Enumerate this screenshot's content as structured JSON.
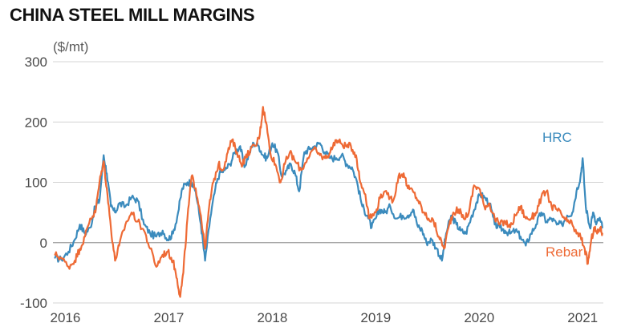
{
  "chart_data": {
    "type": "line",
    "title": "CHINA STEEL MILL MARGINS",
    "ylabel": "($/mt)",
    "xlabel": "",
    "ylim": [
      -100,
      300
    ],
    "xlim": [
      2015.88,
      2021.2
    ],
    "yticks": [
      -100,
      0,
      100,
      200,
      300
    ],
    "xticks": [
      2016,
      2017,
      2018,
      2019,
      2020,
      2021
    ],
    "grid": "horizontal",
    "legend": "inline labels at series ends",
    "series": [
      {
        "name": "HRC",
        "color": "#3b8bbd",
        "points": [
          [
            2015.9,
            -25
          ],
          [
            2015.96,
            -28
          ],
          [
            2016.03,
            -15
          ],
          [
            2016.09,
            5
          ],
          [
            2016.14,
            30
          ],
          [
            2016.19,
            15
          ],
          [
            2016.24,
            25
          ],
          [
            2016.29,
            60
          ],
          [
            2016.33,
            70
          ],
          [
            2016.37,
            145
          ],
          [
            2016.4,
            115
          ],
          [
            2016.44,
            60
          ],
          [
            2016.48,
            50
          ],
          [
            2016.52,
            65
          ],
          [
            2016.58,
            60
          ],
          [
            2016.64,
            75
          ],
          [
            2016.7,
            70
          ],
          [
            2016.76,
            30
          ],
          [
            2016.82,
            15
          ],
          [
            2016.88,
            10
          ],
          [
            2016.94,
            20
          ],
          [
            2016.99,
            5
          ],
          [
            2017.04,
            15
          ],
          [
            2017.09,
            50
          ],
          [
            2017.13,
            90
          ],
          [
            2017.18,
            100
          ],
          [
            2017.22,
            100
          ],
          [
            2017.26,
            85
          ],
          [
            2017.31,
            30
          ],
          [
            2017.35,
            -30
          ],
          [
            2017.4,
            40
          ],
          [
            2017.45,
            90
          ],
          [
            2017.49,
            115
          ],
          [
            2017.54,
            120
          ],
          [
            2017.59,
            130
          ],
          [
            2017.64,
            150
          ],
          [
            2017.69,
            160
          ],
          [
            2017.73,
            125
          ],
          [
            2017.78,
            150
          ],
          [
            2017.82,
            165
          ],
          [
            2017.87,
            160
          ],
          [
            2017.91,
            145
          ],
          [
            2017.95,
            140
          ],
          [
            2018.0,
            165
          ],
          [
            2018.05,
            150
          ],
          [
            2018.09,
            110
          ],
          [
            2018.14,
            120
          ],
          [
            2018.18,
            130
          ],
          [
            2018.22,
            115
          ],
          [
            2018.26,
            85
          ],
          [
            2018.31,
            150
          ],
          [
            2018.36,
            155
          ],
          [
            2018.41,
            160
          ],
          [
            2018.46,
            165
          ],
          [
            2018.51,
            150
          ],
          [
            2018.56,
            140
          ],
          [
            2018.62,
            140
          ],
          [
            2018.67,
            145
          ],
          [
            2018.72,
            130
          ],
          [
            2018.77,
            125
          ],
          [
            2018.82,
            100
          ],
          [
            2018.87,
            60
          ],
          [
            2018.92,
            45
          ],
          [
            2018.96,
            25
          ],
          [
            2019.0,
            40
          ],
          [
            2019.04,
            55
          ],
          [
            2019.09,
            50
          ],
          [
            2019.14,
            60
          ],
          [
            2019.2,
            40
          ],
          [
            2019.26,
            45
          ],
          [
            2019.31,
            45
          ],
          [
            2019.36,
            55
          ],
          [
            2019.4,
            30
          ],
          [
            2019.45,
            20
          ],
          [
            2019.49,
            0
          ],
          [
            2019.54,
            5
          ],
          [
            2019.59,
            -10
          ],
          [
            2019.64,
            -30
          ],
          [
            2019.68,
            15
          ],
          [
            2019.73,
            45
          ],
          [
            2019.78,
            30
          ],
          [
            2019.82,
            20
          ],
          [
            2019.87,
            15
          ],
          [
            2019.92,
            40
          ],
          [
            2019.97,
            65
          ],
          [
            2020.01,
            80
          ],
          [
            2020.05,
            75
          ],
          [
            2020.1,
            65
          ],
          [
            2020.15,
            30
          ],
          [
            2020.2,
            25
          ],
          [
            2020.25,
            20
          ],
          [
            2020.3,
            15
          ],
          [
            2020.35,
            20
          ],
          [
            2020.4,
            10
          ],
          [
            2020.45,
            -5
          ],
          [
            2020.5,
            15
          ],
          [
            2020.55,
            30
          ],
          [
            2020.6,
            50
          ],
          [
            2020.65,
            35
          ],
          [
            2020.7,
            40
          ],
          [
            2020.75,
            30
          ],
          [
            2020.8,
            30
          ],
          [
            2020.85,
            45
          ],
          [
            2020.9,
            50
          ],
          [
            2020.94,
            85
          ],
          [
            2020.98,
            110
          ],
          [
            2021.0,
            140
          ],
          [
            2021.03,
            60
          ],
          [
            2021.07,
            25
          ],
          [
            2021.1,
            50
          ],
          [
            2021.13,
            30
          ],
          [
            2021.16,
            40
          ],
          [
            2021.19,
            25
          ]
        ]
      },
      {
        "name": "Rebar",
        "color": "#ee6a35",
        "points": [
          [
            2015.9,
            -20
          ],
          [
            2015.96,
            -25
          ],
          [
            2016.03,
            -40
          ],
          [
            2016.09,
            -30
          ],
          [
            2016.14,
            -10
          ],
          [
            2016.19,
            10
          ],
          [
            2016.24,
            40
          ],
          [
            2016.29,
            50
          ],
          [
            2016.33,
            100
          ],
          [
            2016.37,
            135
          ],
          [
            2016.4,
            90
          ],
          [
            2016.44,
            25
          ],
          [
            2016.48,
            -30
          ],
          [
            2016.52,
            -5
          ],
          [
            2016.58,
            30
          ],
          [
            2016.64,
            50
          ],
          [
            2016.7,
            35
          ],
          [
            2016.76,
            20
          ],
          [
            2016.82,
            -10
          ],
          [
            2016.88,
            -40
          ],
          [
            2016.94,
            -20
          ],
          [
            2016.99,
            -15
          ],
          [
            2017.04,
            -30
          ],
          [
            2017.08,
            -60
          ],
          [
            2017.11,
            -90
          ],
          [
            2017.14,
            -50
          ],
          [
            2017.18,
            40
          ],
          [
            2017.22,
            110
          ],
          [
            2017.26,
            90
          ],
          [
            2017.31,
            45
          ],
          [
            2017.35,
            -10
          ],
          [
            2017.39,
            60
          ],
          [
            2017.43,
            100
          ],
          [
            2017.48,
            130
          ],
          [
            2017.52,
            120
          ],
          [
            2017.57,
            150
          ],
          [
            2017.61,
            170
          ],
          [
            2017.66,
            150
          ],
          [
            2017.7,
            130
          ],
          [
            2017.74,
            140
          ],
          [
            2017.79,
            155
          ],
          [
            2017.84,
            160
          ],
          [
            2017.88,
            180
          ],
          [
            2017.91,
            225
          ],
          [
            2017.94,
            200
          ],
          [
            2017.98,
            150
          ],
          [
            2018.03,
            130
          ],
          [
            2018.08,
            100
          ],
          [
            2018.12,
            130
          ],
          [
            2018.17,
            150
          ],
          [
            2018.22,
            135
          ],
          [
            2018.28,
            120
          ],
          [
            2018.34,
            140
          ],
          [
            2018.4,
            155
          ],
          [
            2018.46,
            145
          ],
          [
            2018.51,
            140
          ],
          [
            2018.56,
            150
          ],
          [
            2018.61,
            170
          ],
          [
            2018.66,
            165
          ],
          [
            2018.71,
            160
          ],
          [
            2018.76,
            160
          ],
          [
            2018.81,
            145
          ],
          [
            2018.85,
            100
          ],
          [
            2018.9,
            80
          ],
          [
            2018.94,
            40
          ],
          [
            2019.0,
            50
          ],
          [
            2019.05,
            80
          ],
          [
            2019.11,
            80
          ],
          [
            2019.17,
            70
          ],
          [
            2019.22,
            110
          ],
          [
            2019.27,
            115
          ],
          [
            2019.31,
            90
          ],
          [
            2019.36,
            85
          ],
          [
            2019.41,
            70
          ],
          [
            2019.46,
            50
          ],
          [
            2019.51,
            40
          ],
          [
            2019.56,
            35
          ],
          [
            2019.61,
            10
          ],
          [
            2019.66,
            -10
          ],
          [
            2019.71,
            30
          ],
          [
            2019.75,
            50
          ],
          [
            2019.8,
            55
          ],
          [
            2019.85,
            40
          ],
          [
            2019.9,
            50
          ],
          [
            2019.95,
            95
          ],
          [
            2020.0,
            90
          ],
          [
            2020.05,
            60
          ],
          [
            2020.1,
            65
          ],
          [
            2020.15,
            40
          ],
          [
            2020.2,
            30
          ],
          [
            2020.25,
            35
          ],
          [
            2020.3,
            25
          ],
          [
            2020.35,
            45
          ],
          [
            2020.4,
            60
          ],
          [
            2020.45,
            40
          ],
          [
            2020.5,
            40
          ],
          [
            2020.55,
            50
          ],
          [
            2020.6,
            75
          ],
          [
            2020.65,
            85
          ],
          [
            2020.7,
            60
          ],
          [
            2020.75,
            55
          ],
          [
            2020.8,
            45
          ],
          [
            2020.85,
            35
          ],
          [
            2020.9,
            30
          ],
          [
            2020.94,
            15
          ],
          [
            2020.98,
            10
          ],
          [
            2021.02,
            -10
          ],
          [
            2021.05,
            -35
          ],
          [
            2021.08,
            0
          ],
          [
            2021.11,
            25
          ],
          [
            2021.14,
            15
          ],
          [
            2021.17,
            25
          ],
          [
            2021.19,
            15
          ]
        ]
      }
    ]
  }
}
